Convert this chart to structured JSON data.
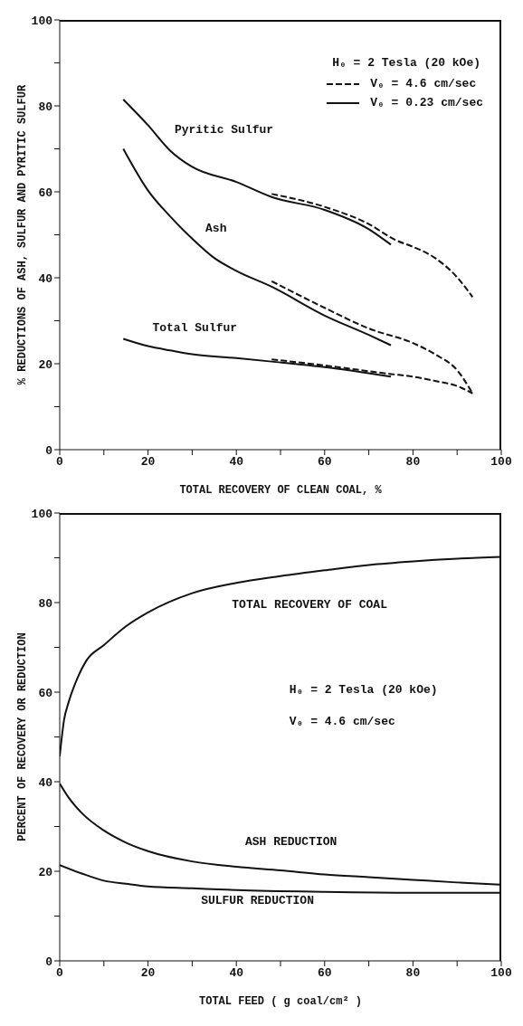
{
  "chart_data": [
    {
      "type": "line",
      "xlabel": "TOTAL RECOVERY OF CLEAN COAL, %",
      "ylabel": "% REDUCTIONS OF ASH, SULFUR AND PYRITIC SULFUR",
      "legend_title": "H₀ = 2 Tesla (20 kOe)",
      "legend": "top right",
      "xlim": [
        0,
        100
      ],
      "ylim": [
        0,
        100
      ],
      "xticks": [
        0,
        {
          "value": 10,
          "label": null
        },
        20,
        {
          "value": 30,
          "label": null
        },
        40,
        {
          "value": 50,
          "label": null
        },
        60,
        {
          "value": 70,
          "label": null
        },
        80,
        {
          "value": 90,
          "label": null
        },
        100
      ],
      "yticks": [
        0,
        {
          "value": 10,
          "label": null
        },
        20,
        {
          "value": 30,
          "label": null
        },
        40,
        {
          "value": 50,
          "label": null
        },
        60,
        {
          "value": 70,
          "label": null
        },
        80,
        {
          "value": 90,
          "label": null
        },
        100
      ],
      "series": [
        {
          "name": "V₀ = 4.6 cm/sec",
          "color": "#111111",
          "line_style": "dashed",
          "x": [
            48,
            60,
            70,
            76,
            80,
            85,
            90,
            93.5
          ],
          "values": [
            59.5,
            56.5,
            52.5,
            48.8,
            47.2,
            44.6,
            40.1,
            35.5
          ]
        },
        {
          "name": "V₀ = 0.23 cm/sec",
          "color": "#111111",
          "line_style": "solid",
          "x": [
            14.4,
            20,
            25,
            30,
            40,
            48,
            60,
            70,
            75
          ],
          "values": [
            81.5,
            75.5,
            69.6,
            65.8,
            62.3,
            58.8,
            55.8,
            51.3,
            47.7
          ]
        },
        {
          "color": "#111111",
          "line_style": "solid",
          "x": [
            14.4,
            20,
            25,
            30,
            35,
            40,
            48,
            60,
            70,
            75
          ],
          "values": [
            70,
            60.3,
            54.3,
            49.1,
            44.6,
            41.6,
            37.9,
            31.2,
            26.7,
            24.3
          ]
        },
        {
          "color": "#111111",
          "line_style": "dashed",
          "x": [
            48,
            60,
            70,
            80,
            85,
            90,
            93.5
          ],
          "values": [
            39.2,
            33,
            28.2,
            24.8,
            22.2,
            18.5,
            13.1
          ]
        },
        {
          "color": "#111111",
          "line_style": "solid",
          "x": [
            14.4,
            20,
            25,
            30,
            40,
            48,
            60,
            75
          ],
          "values": [
            25.8,
            24.1,
            23.1,
            22.2,
            21.3,
            20.5,
            19.2,
            17
          ]
        },
        {
          "color": "#111111",
          "line_style": "dashed",
          "x": [
            48,
            60,
            75,
            80,
            85,
            90,
            93.5
          ],
          "values": [
            21,
            19.6,
            17.6,
            17,
            16,
            14.8,
            13.1
          ]
        }
      ],
      "annotations": [
        "Pyritic Sulfur",
        "Ash",
        "Total Sulfur"
      ]
    },
    {
      "type": "line",
      "xlabel": "TOTAL FEED ( g coal/cm² )",
      "ylabel": "PERCENT OF RECOVERY OR REDUCTION",
      "xlim": [
        0,
        100
      ],
      "ylim": [
        0,
        100
      ],
      "xticks": [
        0,
        {
          "value": 10,
          "label": null
        },
        20,
        {
          "value": 30,
          "label": null
        },
        40,
        {
          "value": 50,
          "label": null
        },
        60,
        {
          "value": 70,
          "label": null
        },
        80,
        {
          "value": 90,
          "label": null
        },
        100
      ],
      "yticks": [
        0,
        {
          "value": 10,
          "label": null
        },
        20,
        {
          "value": 30,
          "label": null
        },
        40,
        {
          "value": 50,
          "label": null
        },
        60,
        {
          "value": 70,
          "label": null
        },
        80,
        {
          "value": 90,
          "label": null
        },
        100
      ],
      "series": [
        {
          "color": "#111111",
          "x": [
            0,
            1,
            2,
            4,
            6,
            10,
            15,
            20,
            30,
            40,
            50,
            60,
            70,
            80,
            90,
            100
          ],
          "values": [
            45.7,
            53.9,
            57.7,
            63.1,
            67,
            70.5,
            74.7,
            77.8,
            82.1,
            84.4,
            85.9,
            87.2,
            88.4,
            89.2,
            89.8,
            90.2
          ]
        },
        {
          "color": "#111111",
          "x": [
            0,
            2,
            5,
            10,
            15,
            20,
            30,
            40,
            50,
            60,
            70,
            80,
            90,
            100
          ],
          "values": [
            39.6,
            36.5,
            33,
            29.1,
            26.4,
            24.5,
            22.2,
            21,
            20.2,
            19.3,
            18.7,
            18.1,
            17.5,
            17
          ]
        },
        {
          "color": "#111111",
          "x": [
            0,
            5,
            10,
            15,
            20,
            30,
            40,
            60,
            80,
            100
          ],
          "values": [
            21.4,
            19.5,
            17.9,
            17.2,
            16.6,
            16.2,
            15.8,
            15.4,
            15.2,
            15.2
          ]
        }
      ],
      "annotations": [
        "TOTAL RECOVERY OF COAL",
        "ASH REDUCTION",
        "SULFUR REDUCTION",
        "H₀ = 2 Tesla (20 kOe)",
        "V₀ = 4.6 cm/sec"
      ]
    }
  ]
}
